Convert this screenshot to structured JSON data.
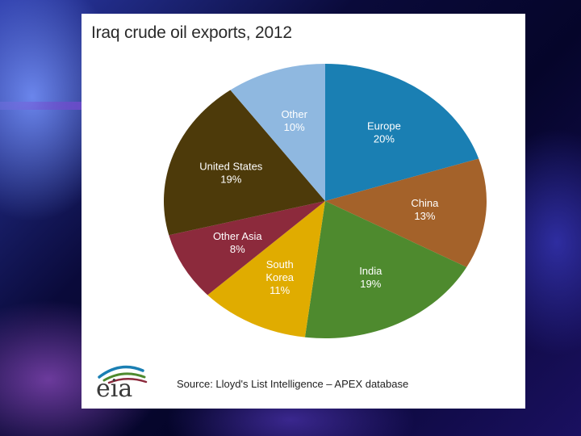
{
  "chart_data": {
    "type": "pie",
    "title": "Iraq crude oil exports, 2012",
    "slices": [
      {
        "label_lines": [
          "Europe"
        ],
        "value": 20,
        "pct_label": "20%",
        "color": "#1a7fb3",
        "text_color": "#ffffff"
      },
      {
        "label_lines": [
          "China"
        ],
        "value": 13,
        "pct_label": "13%",
        "color": "#a4622a",
        "text_color": "#ffffff"
      },
      {
        "label_lines": [
          "India"
        ],
        "value": 19,
        "pct_label": "19%",
        "color": "#4e8a2e",
        "text_color": "#ffffff"
      },
      {
        "label_lines": [
          "South",
          "Korea"
        ],
        "value": 11,
        "pct_label": "11%",
        "color": "#e0ac00",
        "text_color": "#ffffff"
      },
      {
        "label_lines": [
          "Other Asia"
        ],
        "value": 8,
        "pct_label": "8%",
        "color": "#8c2a3c",
        "text_color": "#ffffff"
      },
      {
        "label_lines": [
          "United States"
        ],
        "value": 19,
        "pct_label": "19%",
        "color": "#4d3a0a",
        "text_color": "#ffffff"
      },
      {
        "label_lines": [
          "Other"
        ],
        "value": 10,
        "pct_label": "10%",
        "color": "#8fb8e0",
        "text_color": "#ffffff"
      }
    ],
    "start_angle": "12 o'clock",
    "direction": "clockwise",
    "legend": "none",
    "source": "Source: Lloyd's List Intelligence – APEX database"
  },
  "logo": {
    "text": "eia",
    "colors": [
      "#1a7fb3",
      "#4e8a2e",
      "#8c2a3c"
    ]
  }
}
